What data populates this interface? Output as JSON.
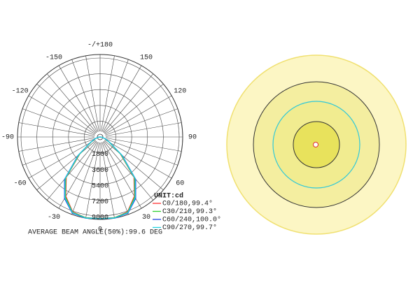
{
  "chart_data": {
    "type": "polar",
    "unit_label": "UNIT:cd",
    "footer": "AVERAGE BEAM ANGLE(50%):99.6 DEG",
    "angle_ticks": [
      {
        "value": 180,
        "label": "-/+180"
      },
      -150,
      -120,
      -90,
      -60,
      -30,
      0,
      30,
      60,
      90,
      120,
      150
    ],
    "rlim": [
      0,
      9000
    ],
    "rticks": [
      1800,
      3600,
      5400,
      7200,
      9000
    ],
    "angles": [
      -90,
      -80,
      -70,
      -60,
      -50,
      -40,
      -30,
      -20,
      -10,
      0,
      10,
      20,
      30,
      40,
      50,
      60,
      70,
      80,
      90
    ],
    "series": [
      {
        "name": "C0/180,99.4°",
        "color": "#ff3030",
        "values": [
          0,
          200,
          600,
          1200,
          3000,
          6000,
          7800,
          9100,
          9350,
          9300,
          9350,
          9100,
          7800,
          6000,
          3000,
          1200,
          600,
          200,
          0
        ]
      },
      {
        "name": "C30/210,99.3°",
        "color": "#30d030",
        "values": [
          0,
          200,
          600,
          1200,
          3100,
          6100,
          7900,
          9150,
          9350,
          9300,
          9350,
          9150,
          7900,
          6100,
          3100,
          1200,
          600,
          200,
          0
        ]
      },
      {
        "name": "C60/240,100.0°",
        "color": "#2040e0",
        "values": [
          0,
          200,
          650,
          1300,
          3300,
          6300,
          8100,
          9250,
          9400,
          9300,
          9400,
          9250,
          8100,
          6300,
          3300,
          1300,
          650,
          200,
          0
        ]
      },
      {
        "name": "C90/270,99.7°",
        "color": "#20d0e0",
        "values": [
          0,
          200,
          620,
          1250,
          3200,
          6200,
          8000,
          9200,
          9380,
          9300,
          9380,
          9200,
          8000,
          6200,
          3200,
          1250,
          620,
          200,
          0
        ]
      }
    ]
  }
}
